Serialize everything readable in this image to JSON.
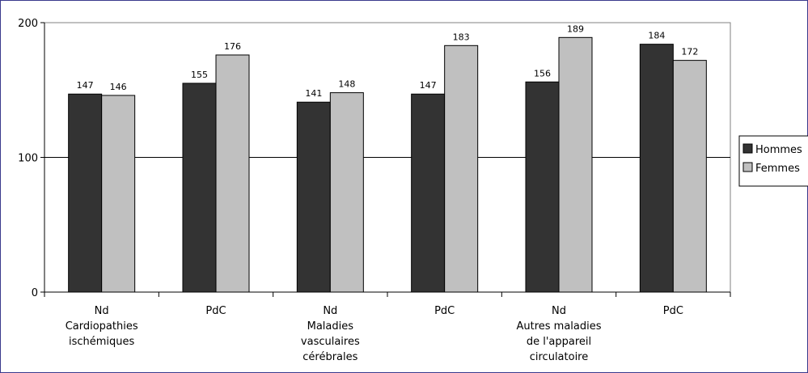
{
  "chart_data": {
    "type": "bar",
    "categories": [
      [
        "Nd",
        "Cardiopathies",
        "ischémiques"
      ],
      [
        "PdC"
      ],
      [
        "Nd",
        "Maladies",
        "vasculaires",
        "cérébrales"
      ],
      [
        "PdC"
      ],
      [
        "Nd",
        "Autres maladies",
        "de l'appareil",
        "circulatoire"
      ],
      [
        "PdC"
      ]
    ],
    "series": [
      {
        "name": "Hommes",
        "color": "#333333",
        "values": [
          147,
          155,
          141,
          147,
          156,
          184
        ]
      },
      {
        "name": "Femmes",
        "color": "#c0c0c0",
        "values": [
          146,
          176,
          148,
          183,
          189,
          172
        ]
      }
    ],
    "yticks": [
      0,
      100,
      200
    ],
    "ylim": [
      0,
      200
    ],
    "gridlines": [
      100
    ],
    "legend_position": "right",
    "title": "",
    "xlabel": "",
    "ylabel": ""
  }
}
